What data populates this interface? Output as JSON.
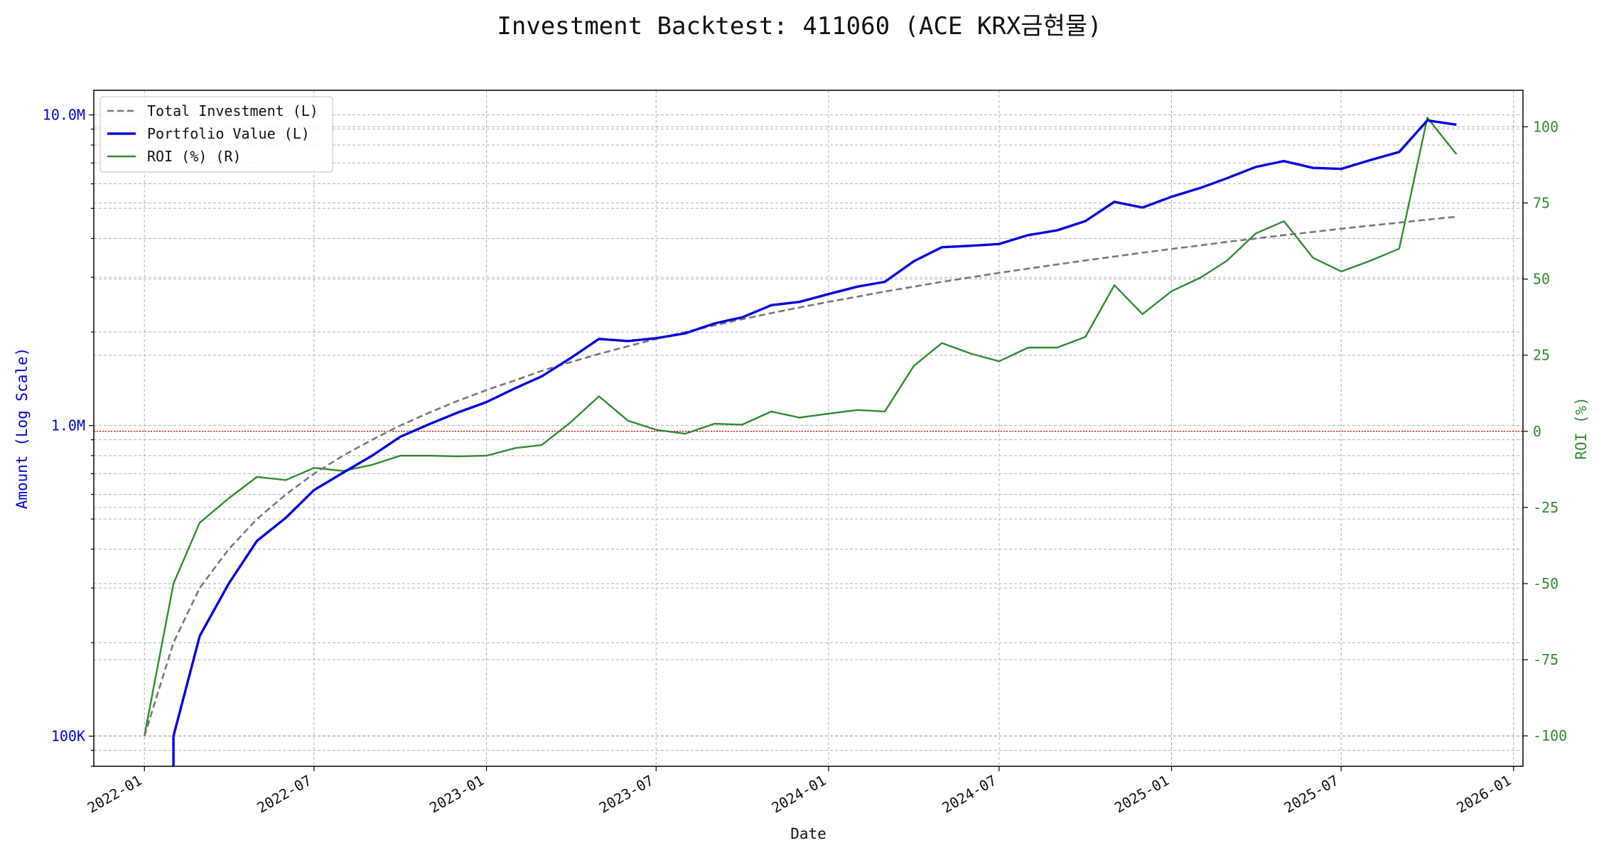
{
  "chart_data": {
    "type": "line",
    "title": "Investment Backtest: 411060 (ACE KRX금현물)",
    "xlabel": "Date",
    "ylabel_left": "Amount (Log Scale)",
    "ylabel_right": "ROI (%)",
    "yscale_left": "log",
    "ylim_left": [
      80000,
      12000000
    ],
    "ylim_right": [
      -110,
      112
    ],
    "left_ticks": [
      {
        "value": 100000,
        "label": "100K"
      },
      {
        "value": 1000000,
        "label": "1.0M"
      },
      {
        "value": 10000000,
        "label": "10.0M"
      }
    ],
    "right_ticks": [
      -100,
      -75,
      -50,
      -25,
      0,
      25,
      50,
      75,
      100
    ],
    "x_ticks": [
      "2022-01",
      "2022-07",
      "2023-01",
      "2023-07",
      "2024-01",
      "2024-07",
      "2025-01",
      "2025-07",
      "2026-01"
    ],
    "xlim": [
      "2021-11-08",
      "2026-01-11"
    ],
    "grid": true,
    "legend_position": "upper-left",
    "zero_line_color": "#cc0000",
    "x": [
      "2022-01-01",
      "2022-02-01",
      "2022-03-01",
      "2022-04-01",
      "2022-05-01",
      "2022-06-01",
      "2022-07-01",
      "2022-08-01",
      "2022-09-01",
      "2022-10-01",
      "2022-11-01",
      "2022-12-01",
      "2023-01-01",
      "2023-02-01",
      "2023-03-01",
      "2023-04-01",
      "2023-05-01",
      "2023-06-01",
      "2023-07-01",
      "2023-08-01",
      "2023-09-01",
      "2023-10-01",
      "2023-11-01",
      "2023-12-01",
      "2024-01-01",
      "2024-02-01",
      "2024-03-01",
      "2024-04-01",
      "2024-05-01",
      "2024-06-01",
      "2024-07-01",
      "2024-08-01",
      "2024-09-01",
      "2024-10-01",
      "2024-11-01",
      "2024-12-01",
      "2025-01-01",
      "2025-02-01",
      "2025-03-01",
      "2025-04-01",
      "2025-05-01",
      "2025-06-01",
      "2025-07-01",
      "2025-08-01",
      "2025-09-01",
      "2025-10-01",
      "2025-11-01"
    ],
    "series": [
      {
        "name": "Total Investment (L)",
        "axis": "left",
        "color": "#777777",
        "style": "dashed",
        "values": [
          100000,
          200000,
          300000,
          400000,
          500000,
          600000,
          700000,
          800000,
          900000,
          1000000,
          1100000,
          1200000,
          1300000,
          1400000,
          1500000,
          1600000,
          1700000,
          1800000,
          1900000,
          2000000,
          2100000,
          2200000,
          2300000,
          2400000,
          2500000,
          2600000,
          2700000,
          2800000,
          2900000,
          3000000,
          3100000,
          3200000,
          3300000,
          3400000,
          3500000,
          3600000,
          3700000,
          3800000,
          3900000,
          4000000,
          4100000,
          4200000,
          4300000,
          4400000,
          4500000,
          4600000,
          4700000
        ]
      },
      {
        "name": "Portfolio Value (L)",
        "axis": "left",
        "color": "#0000dd",
        "style": "solid",
        "values": [
          null,
          100000,
          210000,
          310000,
          425000,
          505000,
          620000,
          705000,
          800000,
          920000,
          1010000,
          1100000,
          1190000,
          1320000,
          1440000,
          1650000,
          1900000,
          1870000,
          1910000,
          1980000,
          2130000,
          2230000,
          2440000,
          2500000,
          2650000,
          2800000,
          2900000,
          3380000,
          3750000,
          3790000,
          3840000,
          4100000,
          4250000,
          4550000,
          5250000,
          5030000,
          5450000,
          5820000,
          6250000,
          6800000,
          7100000,
          6750000,
          6700000,
          7150000,
          7600000,
          9600000,
          9300000
        ]
      },
      {
        "name": "ROI (%) (R)",
        "axis": "right",
        "color": "#2e8b2e",
        "style": "solid",
        "values": [
          -100,
          -50,
          -30,
          -22,
          -15,
          -16,
          -12,
          -13,
          -11,
          -8,
          -8,
          -8.2,
          -8,
          -5.5,
          -4.5,
          3,
          11.5,
          3.5,
          0.5,
          -0.8,
          2.5,
          2.2,
          6.5,
          4.5,
          5.8,
          7,
          6.5,
          21.5,
          29,
          25.5,
          23,
          27.5,
          27.5,
          31,
          48,
          38.5,
          46,
          50.5,
          56,
          65,
          69,
          57,
          52.5,
          56,
          60,
          103,
          91
        ]
      }
    ]
  }
}
